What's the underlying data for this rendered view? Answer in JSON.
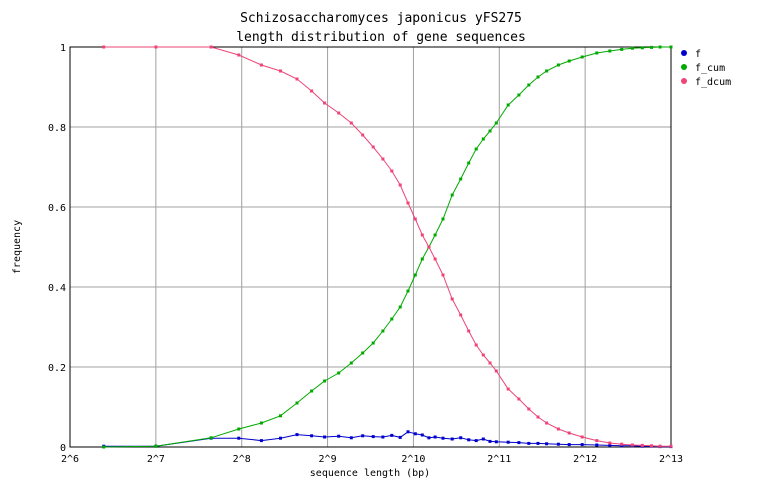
{
  "chart_data": {
    "type": "line",
    "title": "Schizosaccharomyces japonicus yFS275",
    "subtitle": "length distribution of gene sequences",
    "xlabel": "sequence length (bp)",
    "ylabel": "frequency",
    "xscale": "log2",
    "xlim": [
      64,
      8192
    ],
    "ylim": [
      0,
      1
    ],
    "xticks": [
      64,
      128,
      256,
      512,
      1024,
      2048,
      4096,
      8192
    ],
    "xtick_labels": [
      "2^6",
      "2^7",
      "2^8",
      "2^9",
      "2^10",
      "2^11",
      "2^12",
      "2^13"
    ],
    "yticks": [
      0,
      0.2,
      0.4,
      0.6,
      0.8,
      1
    ],
    "ytick_labels": [
      "0",
      "0.2",
      "0.4",
      "0.6",
      "0.8",
      "1"
    ],
    "grid": true,
    "legend_position": "right",
    "series": [
      {
        "name": "f",
        "color": "#0000cc",
        "x": [
          84,
          128,
          200,
          250,
          300,
          350,
          400,
          450,
          500,
          560,
          620,
          680,
          740,
          800,
          860,
          920,
          980,
          1040,
          1100,
          1160,
          1220,
          1300,
          1400,
          1500,
          1600,
          1700,
          1800,
          1900,
          2000,
          2200,
          2400,
          2600,
          2800,
          3000,
          3300,
          3600,
          4000,
          4500,
          5000,
          5500,
          6000,
          6500,
          7000,
          7500,
          8192
        ],
        "y": [
          0.002,
          0.002,
          0.022,
          0.022,
          0.016,
          0.022,
          0.031,
          0.028,
          0.025,
          0.027,
          0.023,
          0.028,
          0.026,
          0.025,
          0.029,
          0.024,
          0.038,
          0.033,
          0.03,
          0.023,
          0.025,
          0.022,
          0.02,
          0.023,
          0.018,
          0.016,
          0.02,
          0.014,
          0.013,
          0.012,
          0.011,
          0.009,
          0.009,
          0.008,
          0.007,
          0.006,
          0.006,
          0.005,
          0.004,
          0.003,
          0.003,
          0.002,
          0.002,
          0.001,
          0.001
        ]
      },
      {
        "name": "f_cum",
        "color": "#00aa00",
        "x": [
          84,
          128,
          200,
          250,
          300,
          350,
          400,
          450,
          500,
          560,
          620,
          680,
          740,
          800,
          860,
          920,
          980,
          1040,
          1100,
          1160,
          1220,
          1300,
          1400,
          1500,
          1600,
          1700,
          1800,
          1900,
          2000,
          2200,
          2400,
          2600,
          2800,
          3000,
          3300,
          3600,
          4000,
          4500,
          5000,
          5500,
          6000,
          6500,
          7000,
          7500,
          8192
        ],
        "y": [
          0.0,
          0.002,
          0.023,
          0.045,
          0.06,
          0.078,
          0.11,
          0.14,
          0.165,
          0.185,
          0.21,
          0.235,
          0.26,
          0.29,
          0.32,
          0.35,
          0.39,
          0.43,
          0.47,
          0.5,
          0.53,
          0.57,
          0.63,
          0.67,
          0.71,
          0.745,
          0.77,
          0.79,
          0.81,
          0.855,
          0.88,
          0.905,
          0.925,
          0.94,
          0.955,
          0.965,
          0.975,
          0.985,
          0.99,
          0.994,
          0.997,
          0.998,
          0.999,
          1.0,
          1.0
        ]
      },
      {
        "name": "f_dcum",
        "color": "#ee4477",
        "x": [
          84,
          128,
          200,
          250,
          300,
          350,
          400,
          450,
          500,
          560,
          620,
          680,
          740,
          800,
          860,
          920,
          980,
          1040,
          1100,
          1160,
          1220,
          1300,
          1400,
          1500,
          1600,
          1700,
          1800,
          1900,
          2000,
          2200,
          2400,
          2600,
          2800,
          3000,
          3300,
          3600,
          4000,
          4500,
          5000,
          5500,
          6000,
          6500,
          7000,
          7500,
          8192
        ],
        "y": [
          1.0,
          1.0,
          1.0,
          0.98,
          0.955,
          0.94,
          0.92,
          0.89,
          0.86,
          0.835,
          0.81,
          0.78,
          0.75,
          0.72,
          0.69,
          0.655,
          0.61,
          0.57,
          0.53,
          0.5,
          0.47,
          0.43,
          0.37,
          0.33,
          0.29,
          0.255,
          0.23,
          0.21,
          0.19,
          0.145,
          0.12,
          0.095,
          0.075,
          0.06,
          0.045,
          0.035,
          0.025,
          0.016,
          0.01,
          0.007,
          0.005,
          0.004,
          0.003,
          0.002,
          0.002
        ]
      }
    ]
  }
}
